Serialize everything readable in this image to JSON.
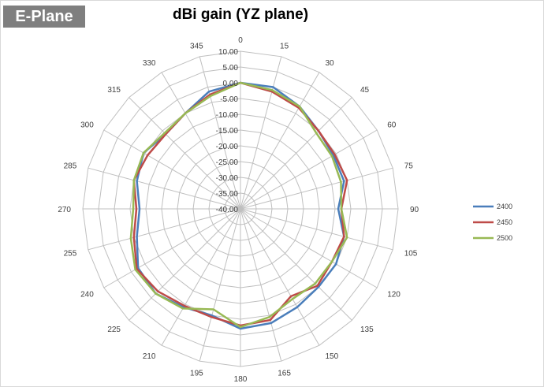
{
  "badge": {
    "label": "E-Plane"
  },
  "chart_data": {
    "type": "radar",
    "title": "dBi gain (YZ plane)",
    "angles": [
      0,
      15,
      30,
      45,
      60,
      75,
      90,
      105,
      120,
      135,
      150,
      165,
      180,
      195,
      210,
      225,
      240,
      255,
      270,
      285,
      300,
      315,
      330,
      345
    ],
    "radial_ticks": [
      "10.00",
      "5.00",
      "0.00",
      "-5.00",
      "-10.00",
      "-15.00",
      "-20.00",
      "-25.00",
      "-30.00",
      "-35.00",
      "-40.00"
    ],
    "rlim": [
      -40,
      10
    ],
    "grid": true,
    "legend_position": "right",
    "series": [
      {
        "name": "2400",
        "color": "#4a7ebb",
        "values": [
          0,
          0,
          -2.5,
          -5,
          -6,
          -6,
          -9,
          -6,
          -5,
          -5,
          -4,
          -2.5,
          -2,
          -5,
          -4,
          -2,
          -2.5,
          -6,
          -8,
          -6,
          -4.5,
          -6.5,
          -5,
          -1.5
        ]
      },
      {
        "name": "2450",
        "color": "#be4b48",
        "values": [
          0,
          -1.5,
          -3,
          -5,
          -5.5,
          -5,
          -8,
          -6,
          -6.5,
          -5.5,
          -8,
          -3.5,
          -3,
          -4.5,
          -4.5,
          -3,
          -2,
          -5,
          -7,
          -5,
          -6,
          -6.5,
          -5,
          -2.5
        ]
      },
      {
        "name": "2500",
        "color": "#98b954",
        "values": [
          0,
          -1,
          -2.5,
          -6,
          -6.5,
          -7,
          -8,
          -5,
          -6.5,
          -6.5,
          -7,
          -4.5,
          -2.5,
          -7,
          -3.5,
          -2,
          -1.5,
          -4,
          -6,
          -5,
          -4.5,
          -6,
          -5,
          -3
        ]
      }
    ]
  }
}
